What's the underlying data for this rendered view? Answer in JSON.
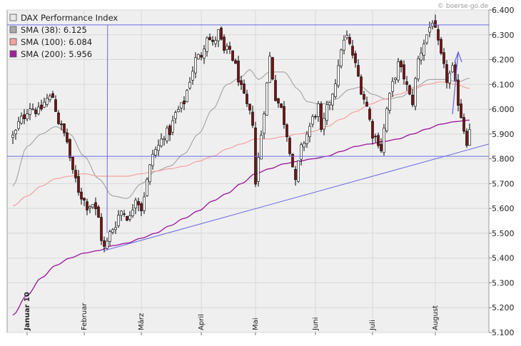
{
  "watermark": "© boerse-go.de",
  "legend": [
    {
      "label": "DAX Performance Index",
      "swatch": "#e8e8e8"
    },
    {
      "label": "SMA (38): 6.125",
      "swatch": "#a8a8a8"
    },
    {
      "label": "SMA (100): 6.084",
      "swatch": "#f5a29a"
    },
    {
      "label": "SMA (200): 5.956",
      "swatch": "#a020a0"
    }
  ],
  "colors": {
    "background": "#efefef",
    "grid": "#d8d8d8",
    "up_candle": "#ffffff",
    "down_candle": "#7a1010",
    "candle_outline": "#000000",
    "sma38": "#a8a8a8",
    "sma100": "#f5a29a",
    "sma200": "#a020a0",
    "trendlines": "#6a6ae8"
  },
  "chart_data": {
    "type": "candlestick",
    "ylim": [
      5100,
      6400
    ],
    "yticks": [
      "6.400",
      "6.300",
      "6.200",
      "6.100",
      "6.000",
      "5.900",
      "5.800",
      "5.700",
      "5.600",
      "5.500",
      "5.400",
      "5.300",
      "5.200",
      "5.100"
    ],
    "ytick_values": [
      6400,
      6300,
      6200,
      6100,
      6000,
      5900,
      5800,
      5700,
      5600,
      5500,
      5400,
      5300,
      5200,
      5100
    ],
    "x_count": 153,
    "xticks": [
      {
        "label": "Januar 10",
        "index": 5,
        "bold": true
      },
      {
        "label": "Februar",
        "index": 25,
        "bold": false
      },
      {
        "label": "März",
        "index": 45,
        "bold": false
      },
      {
        "label": "April",
        "index": 66,
        "bold": false
      },
      {
        "label": "Mai",
        "index": 85,
        "bold": false
      },
      {
        "label": "Juni",
        "index": 106,
        "bold": false
      },
      {
        "label": "Juli",
        "index": 126,
        "bold": false
      },
      {
        "label": "August",
        "index": 148,
        "bold": false
      }
    ],
    "close_anchors": [
      [
        0,
        5890
      ],
      [
        3,
        5960
      ],
      [
        6,
        6010
      ],
      [
        9,
        5990
      ],
      [
        12,
        6040
      ],
      [
        14,
        6050
      ],
      [
        16,
        5950
      ],
      [
        18,
        5900
      ],
      [
        19,
        5870
      ],
      [
        21,
        5740
      ],
      [
        24,
        5650
      ],
      [
        26,
        5610
      ],
      [
        28,
        5620
      ],
      [
        30,
        5560
      ],
      [
        31,
        5480
      ],
      [
        32,
        5440
      ],
      [
        35,
        5520
      ],
      [
        38,
        5590
      ],
      [
        41,
        5560
      ],
      [
        43,
        5650
      ],
      [
        45,
        5600
      ],
      [
        47,
        5710
      ],
      [
        49,
        5820
      ],
      [
        51,
        5850
      ],
      [
        53,
        5900
      ],
      [
        55,
        5910
      ],
      [
        57,
        5980
      ],
      [
        59,
        6010
      ],
      [
        60,
        6030
      ],
      [
        62,
        6120
      ],
      [
        64,
        6200
      ],
      [
        66,
        6220
      ],
      [
        68,
        6300
      ],
      [
        70,
        6260
      ],
      [
        72,
        6310
      ],
      [
        74,
        6230
      ],
      [
        76,
        6240
      ],
      [
        78,
        6170
      ],
      [
        80,
        6080
      ],
      [
        82,
        6010
      ],
      [
        84,
        5950
      ],
      [
        85,
        5700
      ],
      [
        87,
        5900
      ],
      [
        89,
        6100
      ],
      [
        90,
        6210
      ],
      [
        92,
        6050
      ],
      [
        94,
        6000
      ],
      [
        96,
        5900
      ],
      [
        97,
        5840
      ],
      [
        99,
        5700
      ],
      [
        100,
        5780
      ],
      [
        101,
        5840
      ],
      [
        103,
        5900
      ],
      [
        105,
        5960
      ],
      [
        107,
        6010
      ],
      [
        108,
        5900
      ],
      [
        110,
        6000
      ],
      [
        112,
        6070
      ],
      [
        114,
        6160
      ],
      [
        115,
        6250
      ],
      [
        117,
        6290
      ],
      [
        119,
        6220
      ],
      [
        121,
        6130
      ],
      [
        122,
        6080
      ],
      [
        124,
        6010
      ],
      [
        126,
        5900
      ],
      [
        128,
        5870
      ],
      [
        129,
        5840
      ],
      [
        131,
        6000
      ],
      [
        133,
        6100
      ],
      [
        135,
        6180
      ],
      [
        137,
        6130
      ],
      [
        139,
        6050
      ],
      [
        140,
        6030
      ],
      [
        142,
        6200
      ],
      [
        144,
        6270
      ],
      [
        146,
        6330
      ],
      [
        147,
        6360
      ],
      [
        148,
        6310
      ],
      [
        150,
        6210
      ],
      [
        152,
        6120
      ],
      [
        154,
        6160
      ],
      [
        156,
        6030
      ],
      [
        158,
        5920
      ],
      [
        159,
        5870
      ],
      [
        160,
        5930
      ]
    ],
    "sma38_anchors": [
      [
        0,
        5690
      ],
      [
        5,
        5850
      ],
      [
        10,
        5900
      ],
      [
        15,
        5930
      ],
      [
        20,
        5900
      ],
      [
        25,
        5810
      ],
      [
        30,
        5720
      ],
      [
        35,
        5650
      ],
      [
        40,
        5640
      ],
      [
        45,
        5700
      ],
      [
        50,
        5750
      ],
      [
        55,
        5770
      ],
      [
        60,
        5820
      ],
      [
        65,
        5900
      ],
      [
        70,
        6000
      ],
      [
        75,
        6100
      ],
      [
        80,
        6130
      ],
      [
        83,
        6160
      ],
      [
        86,
        6120
      ],
      [
        90,
        6150
      ],
      [
        95,
        6150
      ],
      [
        100,
        6080
      ],
      [
        103,
        6030
      ],
      [
        108,
        6020
      ],
      [
        113,
        6040
      ],
      [
        118,
        6080
      ],
      [
        122,
        6090
      ],
      [
        126,
        6060
      ],
      [
        131,
        6040
      ],
      [
        136,
        6050
      ],
      [
        141,
        6090
      ],
      [
        146,
        6120
      ],
      [
        151,
        6120
      ],
      [
        156,
        6110
      ],
      [
        160,
        6125
      ]
    ],
    "sma100_anchors": [
      [
        0,
        5610
      ],
      [
        5,
        5650
      ],
      [
        10,
        5690
      ],
      [
        15,
        5720
      ],
      [
        20,
        5730
      ],
      [
        25,
        5740
      ],
      [
        30,
        5730
      ],
      [
        35,
        5730
      ],
      [
        40,
        5730
      ],
      [
        45,
        5740
      ],
      [
        50,
        5750
      ],
      [
        55,
        5760
      ],
      [
        60,
        5770
      ],
      [
        65,
        5790
      ],
      [
        70,
        5810
      ],
      [
        75,
        5840
      ],
      [
        80,
        5860
      ],
      [
        85,
        5880
      ],
      [
        90,
        5880
      ],
      [
        95,
        5890
      ],
      [
        100,
        5900
      ],
      [
        105,
        5910
      ],
      [
        110,
        5930
      ],
      [
        115,
        5960
      ],
      [
        120,
        5990
      ],
      [
        125,
        6020
      ],
      [
        130,
        6040
      ],
      [
        135,
        6060
      ],
      [
        140,
        6080
      ],
      [
        145,
        6100
      ],
      [
        150,
        6110
      ],
      [
        155,
        6100
      ],
      [
        160,
        6084
      ]
    ],
    "sma200_anchors": [
      [
        0,
        5170
      ],
      [
        5,
        5250
      ],
      [
        10,
        5320
      ],
      [
        15,
        5370
      ],
      [
        20,
        5400
      ],
      [
        25,
        5420
      ],
      [
        30,
        5430
      ],
      [
        35,
        5450
      ],
      [
        40,
        5460
      ],
      [
        45,
        5480
      ],
      [
        50,
        5500
      ],
      [
        55,
        5530
      ],
      [
        60,
        5560
      ],
      [
        65,
        5590
      ],
      [
        70,
        5630
      ],
      [
        75,
        5660
      ],
      [
        80,
        5700
      ],
      [
        85,
        5740
      ],
      [
        90,
        5760
      ],
      [
        95,
        5780
      ],
      [
        100,
        5790
      ],
      [
        105,
        5800
      ],
      [
        110,
        5810
      ],
      [
        115,
        5830
      ],
      [
        120,
        5850
      ],
      [
        125,
        5860
      ],
      [
        130,
        5870
      ],
      [
        135,
        5880
      ],
      [
        140,
        5900
      ],
      [
        145,
        5920
      ],
      [
        150,
        5940
      ],
      [
        155,
        5950
      ],
      [
        160,
        5956
      ]
    ],
    "horizontal_lines": [
      6340,
      5810
    ],
    "trendlines": [
      {
        "x1": 32,
        "y1": 5430,
        "x2": 170,
        "y2": 5870
      },
      {
        "x1": 33,
        "y1": 5500,
        "x2": 33.2,
        "y2": 6340
      }
    ],
    "arrow": {
      "x1": 154,
      "y1": 5980,
      "x2": 156,
      "y2": 6230
    }
  }
}
